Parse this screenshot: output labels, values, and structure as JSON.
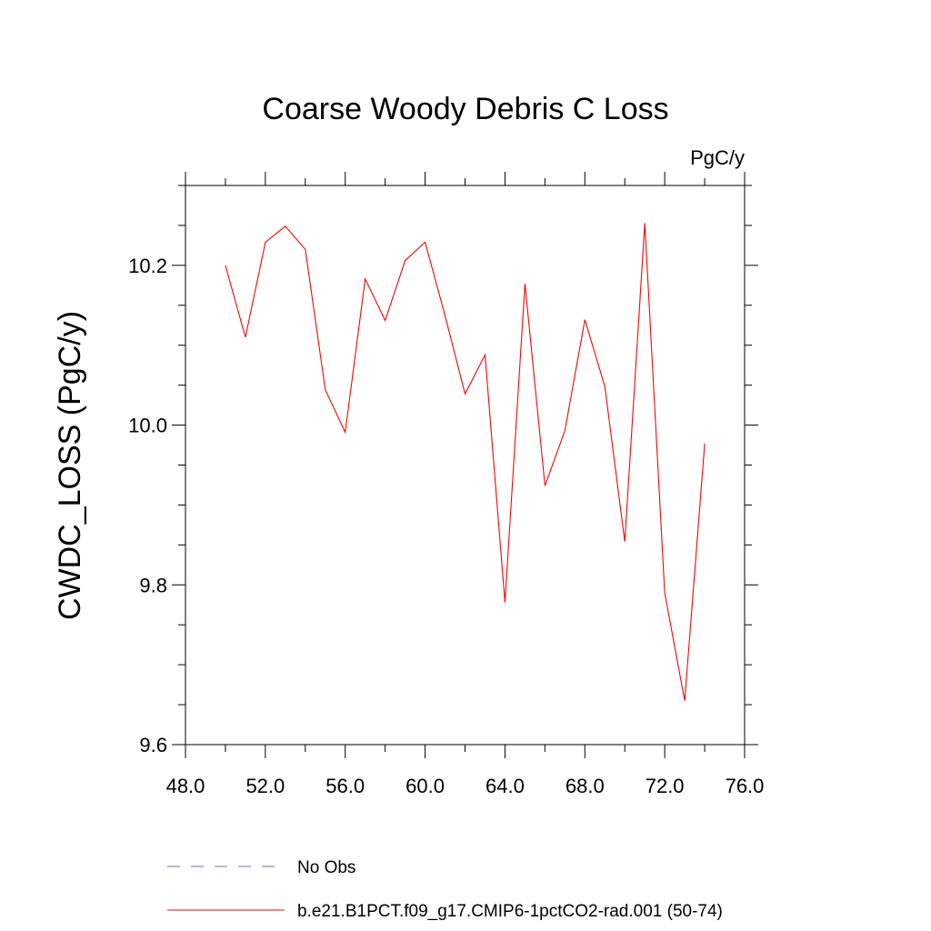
{
  "chart_data": {
    "type": "line",
    "title": "Coarse Woody Debris C Loss",
    "units_label": "PgC/y",
    "xlabel": "",
    "ylabel": "CWDC_LOSS  (PgC/y)",
    "xlim": [
      48,
      76
    ],
    "ylim": [
      9.6,
      10.3
    ],
    "x_ticks": [
      48,
      52,
      56,
      60,
      64,
      68,
      72,
      76
    ],
    "x_tick_labels": [
      "48.0",
      "52.0",
      "56.0",
      "60.0",
      "64.0",
      "68.0",
      "72.0",
      "76.0"
    ],
    "y_ticks": [
      9.6,
      9.8,
      10.0,
      10.2
    ],
    "y_tick_labels": [
      "9.6",
      "9.8",
      "10.0",
      "10.2"
    ],
    "grid": false,
    "legend_position": "bottom",
    "series": [
      {
        "name": "b.e21.B1PCT.f09_g17.CMIP6-1pctCO2-rad.001 (50-74)",
        "color": "#ff0000",
        "style": "solid",
        "x": [
          50,
          51,
          52,
          53,
          54,
          55,
          56,
          57,
          58,
          59,
          60,
          61,
          62,
          63,
          64,
          65,
          66,
          67,
          68,
          69,
          70,
          71,
          72,
          73,
          74
        ],
        "y": [
          10.2,
          10.11,
          10.229,
          10.249,
          10.22,
          10.044,
          9.991,
          10.183,
          10.131,
          10.206,
          10.229,
          10.137,
          10.039,
          10.088,
          9.778,
          10.177,
          9.924,
          9.993,
          10.132,
          10.048,
          9.854,
          10.253,
          9.79,
          9.655,
          9.977
        ]
      }
    ],
    "legend": [
      {
        "label": "No Obs",
        "color": "#6a6ad0",
        "style": "dashed"
      },
      {
        "label": "b.e21.B1PCT.f09_g17.CMIP6-1pctCO2-rad.001 (50-74)",
        "color": "#ff0000",
        "style": "solid"
      }
    ]
  }
}
